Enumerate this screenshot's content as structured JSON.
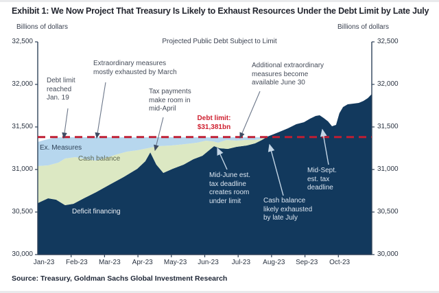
{
  "header": {
    "exhibit_title": "Exhibit 1: We Now Project That Treasury Is Likely to Exhaust Resources Under the Debt Limit by Late July",
    "units_left": "Billions of dollars",
    "units_right": "Billions of dollars"
  },
  "source_line": "Source: Treasury, Goldman Sachs Global Investment Research",
  "chart_data": {
    "type": "area",
    "variant": "stacked-area",
    "title": "Projected Public Debt Subject to Limit",
    "ylabel": "Billions of dollars",
    "x_range_months": [
      0,
      10
    ],
    "y_range": [
      30000,
      32500
    ],
    "grid": "off",
    "x_ticks": [
      "Jan-23",
      "Feb-23",
      "Mar-23",
      "Apr-23",
      "May-23",
      "Jun-23",
      "Jul-23",
      "Aug-23",
      "Sep-23",
      "Oct-23"
    ],
    "y_ticks": [
      {
        "value": 32500,
        "label": "32,500"
      },
      {
        "value": 32000,
        "label": "32,000"
      },
      {
        "value": 31500,
        "label": "31,500"
      },
      {
        "value": 31000,
        "label": "31,000"
      },
      {
        "value": 30500,
        "label": "30,500"
      },
      {
        "value": 30000,
        "label": "30,000"
      }
    ],
    "debt_limit": {
      "value": 31381,
      "label": "Debt limit:\n$31,381bn",
      "color": "#bf1e33"
    },
    "colors": {
      "deficit": "#12395d",
      "cash": "#dce8c3",
      "ex_measures": "#b7d7ee",
      "axis": "#2e4158"
    },
    "boundaries": {
      "deficit_top": [
        [
          0,
          30605
        ],
        [
          0.31,
          30661
        ],
        [
          0.55,
          30645
        ],
        [
          0.82,
          30581
        ],
        [
          1.07,
          30597
        ],
        [
          1.38,
          30661
        ],
        [
          1.75,
          30734
        ],
        [
          2.16,
          30823
        ],
        [
          2.57,
          30911
        ],
        [
          2.98,
          31008
        ],
        [
          3.22,
          31097
        ],
        [
          3.37,
          31202
        ],
        [
          3.55,
          31057
        ],
        [
          3.76,
          30960
        ],
        [
          4.04,
          31008
        ],
        [
          4.37,
          31057
        ],
        [
          4.66,
          31121
        ],
        [
          4.93,
          31161
        ],
        [
          5.13,
          31226
        ],
        [
          5.28,
          31274
        ],
        [
          5.44,
          31250
        ],
        [
          5.69,
          31242
        ],
        [
          5.95,
          31266
        ],
        [
          6.26,
          31282
        ],
        [
          6.51,
          31307
        ],
        [
          6.71,
          31347
        ],
        [
          6.88,
          31387
        ],
        [
          7.04,
          31411
        ],
        [
          7.25,
          31444
        ],
        [
          7.49,
          31484
        ],
        [
          7.74,
          31532
        ],
        [
          7.97,
          31556
        ],
        [
          8.15,
          31597
        ],
        [
          8.32,
          31629
        ],
        [
          8.44,
          31637
        ],
        [
          8.56,
          31605
        ],
        [
          8.69,
          31565
        ],
        [
          8.81,
          31508
        ],
        [
          8.93,
          31524
        ],
        [
          9.03,
          31661
        ],
        [
          9.14,
          31734
        ],
        [
          9.28,
          31766
        ],
        [
          9.45,
          31774
        ],
        [
          9.61,
          31782
        ],
        [
          9.75,
          31806
        ],
        [
          9.88,
          31839
        ],
        [
          10,
          31887
        ]
      ],
      "cash_top": [
        [
          0,
          31040
        ],
        [
          0.31,
          31048
        ],
        [
          0.62,
          31081
        ],
        [
          0.82,
          31129
        ],
        [
          1.13,
          31145
        ],
        [
          1.44,
          31121
        ],
        [
          1.75,
          31105
        ],
        [
          2.05,
          31137
        ],
        [
          2.36,
          31177
        ],
        [
          2.67,
          31210
        ],
        [
          2.98,
          31226
        ],
        [
          3.29,
          31250
        ],
        [
          3.59,
          31274
        ],
        [
          4.0,
          31282
        ],
        [
          4.41,
          31298
        ],
        [
          4.78,
          31315
        ],
        [
          5.03,
          31339
        ],
        [
          5.24,
          31331
        ],
        [
          5.4,
          31315
        ],
        [
          5.65,
          31347
        ],
        [
          5.95,
          31339
        ],
        [
          6.22,
          31347
        ],
        [
          6.51,
          31347
        ],
        [
          6.71,
          31363
        ],
        [
          6.88,
          31387
        ]
      ],
      "total_top": [
        [
          0,
          31323
        ],
        [
          0.21,
          31347
        ],
        [
          0.47,
          31371
        ],
        [
          0.72,
          31379
        ],
        [
          2,
          31379
        ],
        [
          3,
          31378
        ],
        [
          4,
          31379
        ],
        [
          5,
          31378
        ],
        [
          6,
          31379
        ],
        [
          6.78,
          31380
        ],
        [
          6.88,
          31387
        ]
      ],
      "baseline": 30000
    },
    "layers": [
      {
        "name": "deficit-financing",
        "label": "Deficit financing",
        "top": "deficit_top",
        "bottom": "baseline",
        "color": "#12395d"
      },
      {
        "name": "cash-balance",
        "label": "Cash balance",
        "top": "cash_top",
        "bottom": "deficit_top",
        "color": "#dce8c3"
      },
      {
        "name": "extraordinary-measures",
        "label": "Ex. Measures",
        "top": "total_top",
        "bottom": "cash_top",
        "color": "#b7d7ee"
      }
    ],
    "annotations": [
      {
        "id": "debt_limit_reached",
        "text": "Debt limit\nreached\nJan. 19"
      },
      {
        "id": "extraordinary_exhausted",
        "text": "Extraordinary measures\nmostly exhausted by March"
      },
      {
        "id": "tax_payments_april",
        "text": "Tax payments\nmake room in\nmid-April"
      },
      {
        "id": "additional_measures",
        "text": "Additional extraordinary\nmeasures become\navailable June 30"
      },
      {
        "id": "mid_june",
        "text": "Mid-June est.\ntax deadline\ncreates room\nunder limit"
      },
      {
        "id": "cash_exhausted",
        "text": "Cash balance\nlikely exhausted\nby late July"
      },
      {
        "id": "mid_sept",
        "text": "Mid-Sept.\nest. tax\ndeadline"
      }
    ],
    "arrows": [
      {
        "from": [
          99,
          158
        ],
        "to": [
          93,
          201
        ],
        "variant": "dark"
      },
      {
        "from": [
          154,
          120
        ],
        "to": [
          141,
          201
        ],
        "variant": "dark"
      },
      {
        "from": [
          238,
          171
        ],
        "to": [
          226,
          219
        ],
        "variant": "dark"
      },
      {
        "from": [
          379,
          133
        ],
        "to": [
          350,
          201
        ],
        "variant": "dark"
      },
      {
        "from": [
          331,
          247
        ],
        "to": [
          317,
          216
        ],
        "variant": "light"
      },
      {
        "from": [
          413,
          285
        ],
        "to": [
          393,
          211
        ],
        "variant": "light"
      },
      {
        "from": [
          479,
          240
        ],
        "to": [
          470,
          189
        ],
        "variant": "light"
      }
    ]
  }
}
